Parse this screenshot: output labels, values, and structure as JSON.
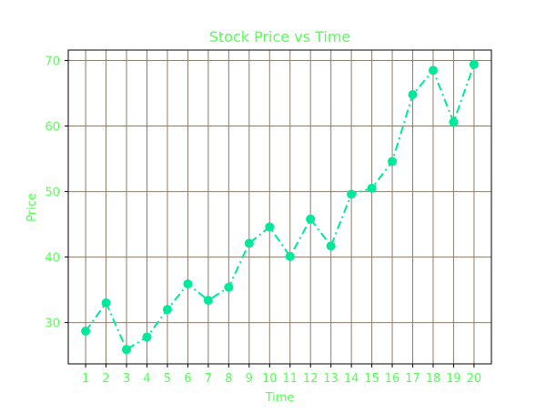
{
  "chart_data": {
    "type": "line",
    "title": "Stock Price vs Time",
    "xlabel": "Time",
    "ylabel": "Price",
    "x": [
      1,
      2,
      3,
      4,
      5,
      6,
      7,
      8,
      9,
      10,
      11,
      12,
      13,
      14,
      15,
      16,
      17,
      18,
      19,
      20
    ],
    "series": [
      {
        "values": [
          28.7,
          33.0,
          25.9,
          27.8,
          32.0,
          35.9,
          33.4,
          35.4,
          42.1,
          44.6,
          40.1,
          45.8,
          41.7,
          49.6,
          50.5,
          54.6,
          64.8,
          68.5,
          60.6,
          69.4
        ],
        "color": "#00e89a",
        "line_style": "dash-dot",
        "marker": "circle"
      }
    ],
    "xlim": [
      0.15,
      20.85
    ],
    "ylim": [
      23.7,
      71.6
    ],
    "yticks": [
      30,
      40,
      50,
      60,
      70
    ],
    "grid": true,
    "grid_color": "#8b7d6b",
    "text_color": "#55ff55",
    "legend": false
  }
}
